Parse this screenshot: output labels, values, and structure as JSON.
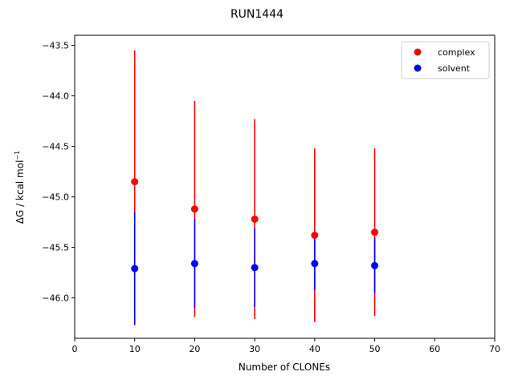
{
  "chart_data": {
    "type": "scatter",
    "title": "RUN1444",
    "xlabel": "Number of CLONEs",
    "ylabel_main": "ΔG / kcal mol",
    "ylabel_sup": "−1",
    "xlim": [
      0,
      70
    ],
    "ylim": [
      -46.4,
      -43.4
    ],
    "x_ticks": [
      0,
      10,
      20,
      30,
      40,
      50,
      60,
      70
    ],
    "x_tick_labels": [
      "0",
      "10",
      "20",
      "30",
      "40",
      "50",
      "60",
      "70"
    ],
    "y_ticks": [
      -46.0,
      -45.5,
      -45.0,
      -44.5,
      -44.0,
      -43.5
    ],
    "y_tick_labels": [
      "−46.0",
      "−45.5",
      "−45.0",
      "−44.5",
      "−44.0",
      "−43.5"
    ],
    "grid": false,
    "legend_position": "top-right",
    "series": [
      {
        "name": "complex",
        "color": "#ff0000",
        "x": [
          10,
          20,
          30,
          40,
          50
        ],
        "y": [
          -44.85,
          -45.12,
          -45.22,
          -45.38,
          -45.35
        ],
        "yerr": [
          1.3,
          1.07,
          0.99,
          0.86,
          0.83
        ]
      },
      {
        "name": "solvent",
        "color": "#0000ff",
        "x": [
          10,
          20,
          30,
          40,
          50
        ],
        "y": [
          -45.71,
          -45.66,
          -45.7,
          -45.66,
          -45.68
        ],
        "yerr": [
          0.56,
          0.44,
          0.39,
          0.26,
          0.27
        ]
      }
    ]
  }
}
